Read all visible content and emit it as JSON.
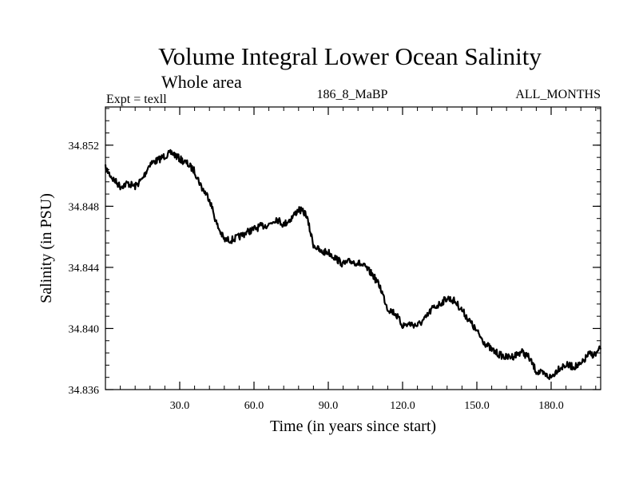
{
  "chart_data": {
    "type": "line",
    "title": "Volume Integral Lower Ocean Salinity",
    "subtitle": "Whole area",
    "expt_label": "Expt = texll",
    "case_label": "186_8_MaBP",
    "months_label": "ALL_MONTHS",
    "xlabel": "Time (in years since start)",
    "ylabel": "Salinity (in PSU)",
    "xlim": [
      0,
      200
    ],
    "ylim": [
      34.836,
      34.8545
    ],
    "xticks": [
      30,
      60,
      90,
      120,
      150,
      180
    ],
    "xtick_labels": [
      "30.0",
      "60.0",
      "90.0",
      "120.0",
      "150.0",
      "180.0"
    ],
    "yticks": [
      34.836,
      34.84,
      34.844,
      34.848,
      34.852
    ],
    "ytick_labels": [
      "34.836",
      "34.840",
      "34.844",
      "34.848",
      "34.852"
    ],
    "grid": false,
    "series": [
      {
        "name": "salinity",
        "x": [
          0,
          3,
          6,
          9,
          12,
          15,
          18,
          21,
          24,
          27,
          30,
          33,
          36,
          39,
          42,
          45,
          48,
          51,
          54,
          57,
          60,
          63,
          66,
          69,
          72,
          75,
          78,
          81,
          84,
          87,
          90,
          93,
          96,
          99,
          102,
          105,
          108,
          111,
          114,
          117,
          120,
          123,
          126,
          129,
          132,
          135,
          138,
          141,
          144,
          147,
          150,
          153,
          156,
          159,
          162,
          165,
          168,
          171,
          174,
          177,
          180,
          183,
          186,
          189,
          192,
          195,
          198,
          200
        ],
        "values": [
          34.8505,
          34.8498,
          34.8493,
          34.8495,
          34.8493,
          34.8498,
          34.8508,
          34.851,
          34.8513,
          34.8515,
          34.8511,
          34.8508,
          34.8503,
          34.8492,
          34.8485,
          34.8468,
          34.8458,
          34.8458,
          34.846,
          34.8463,
          34.8465,
          34.8467,
          34.8468,
          34.8472,
          34.8468,
          34.8472,
          34.8478,
          34.8475,
          34.8455,
          34.845,
          34.845,
          34.8446,
          34.8442,
          34.8444,
          34.8443,
          34.844,
          34.8435,
          34.8427,
          34.8413,
          34.841,
          34.8402,
          34.8403,
          34.8402,
          34.8406,
          34.8413,
          34.8416,
          34.842,
          34.8418,
          34.8412,
          34.8405,
          34.8398,
          34.8391,
          34.8386,
          34.8383,
          34.8381,
          34.8382,
          34.8385,
          34.8381,
          34.8372,
          34.837,
          34.8368,
          34.8374,
          34.8376,
          34.8375,
          34.8376,
          34.8383,
          34.8383,
          34.8387
        ]
      }
    ]
  }
}
